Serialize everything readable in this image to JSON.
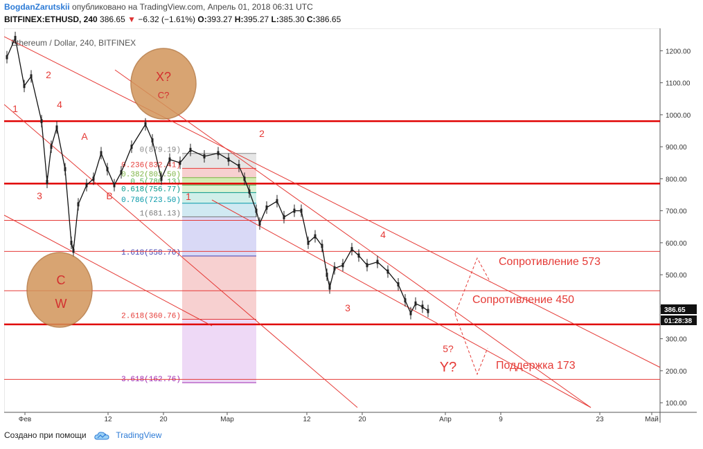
{
  "header": {
    "author": "BogdanZarutskii",
    "published_text": "опубликовано на TradingView.com, Апрель 01, 2018 06:31 UTC",
    "symbol": "BITFINEX:ETHUSD, 240",
    "last": "386.65",
    "change": "−6.32 (−1.61%)",
    "o_label": "O:",
    "o": "393.27",
    "h_label": "H:",
    "h": "395.27",
    "l_label": "L:",
    "l": "385.30",
    "c_label": "C:",
    "c": "386.65"
  },
  "footer": {
    "made_with": "Создано при помощи",
    "brand": "TradingView"
  },
  "chart_data": {
    "type": "line",
    "subtype": "candlestick",
    "title": "Ethereum / Dollar, 240, BITFINEX",
    "xlabel": "",
    "ylabel": "",
    "ylim": [
      70,
      1270
    ],
    "x_ticks": [
      "Фев",
      "12",
      "20",
      "Мар",
      "12",
      "20",
      "Апр",
      "9",
      "23",
      "Май"
    ],
    "y_ticks": [
      "1200.00",
      "1100.00",
      "1000.00",
      "900.00",
      "800.00",
      "700.00",
      "600.00",
      "500.00",
      "400.00",
      "300.00",
      "200.00",
      "100.00"
    ],
    "price_path": [
      {
        "x": 0.0,
        "y": 1180
      },
      {
        "x": 1.2,
        "y": 1240
      },
      {
        "x": 2.5,
        "y": 1090
      },
      {
        "x": 3.5,
        "y": 1120
      },
      {
        "x": 5.0,
        "y": 980
      },
      {
        "x": 5.8,
        "y": 790
      },
      {
        "x": 6.4,
        "y": 900
      },
      {
        "x": 7.2,
        "y": 960
      },
      {
        "x": 8.4,
        "y": 830
      },
      {
        "x": 9.3,
        "y": 600
      },
      {
        "x": 9.6,
        "y": 575
      },
      {
        "x": 10.3,
        "y": 720
      },
      {
        "x": 11.5,
        "y": 780
      },
      {
        "x": 12.5,
        "y": 800
      },
      {
        "x": 13.6,
        "y": 880
      },
      {
        "x": 14.5,
        "y": 830
      },
      {
        "x": 15.5,
        "y": 780
      },
      {
        "x": 16.5,
        "y": 820
      },
      {
        "x": 18.0,
        "y": 900
      },
      {
        "x": 20.0,
        "y": 970
      },
      {
        "x": 21.0,
        "y": 920
      },
      {
        "x": 22.3,
        "y": 800
      },
      {
        "x": 23.5,
        "y": 860
      },
      {
        "x": 25.0,
        "y": 850
      },
      {
        "x": 26.5,
        "y": 890
      },
      {
        "x": 28.5,
        "y": 870
      },
      {
        "x": 30.5,
        "y": 880
      },
      {
        "x": 32.0,
        "y": 860
      },
      {
        "x": 33.5,
        "y": 840
      },
      {
        "x": 34.3,
        "y": 800
      },
      {
        "x": 35.0,
        "y": 760
      },
      {
        "x": 36.0,
        "y": 700
      },
      {
        "x": 36.5,
        "y": 660
      },
      {
        "x": 37.5,
        "y": 710
      },
      {
        "x": 39.0,
        "y": 730
      },
      {
        "x": 40.0,
        "y": 680
      },
      {
        "x": 41.5,
        "y": 700
      },
      {
        "x": 42.5,
        "y": 700
      },
      {
        "x": 43.5,
        "y": 600
      },
      {
        "x": 44.5,
        "y": 620
      },
      {
        "x": 45.5,
        "y": 590
      },
      {
        "x": 46.2,
        "y": 500
      },
      {
        "x": 46.6,
        "y": 460
      },
      {
        "x": 47.3,
        "y": 520
      },
      {
        "x": 48.5,
        "y": 530
      },
      {
        "x": 49.8,
        "y": 580
      },
      {
        "x": 50.8,
        "y": 560
      },
      {
        "x": 52.0,
        "y": 530
      },
      {
        "x": 53.5,
        "y": 540
      },
      {
        "x": 55.0,
        "y": 510
      },
      {
        "x": 56.5,
        "y": 470
      },
      {
        "x": 57.5,
        "y": 420
      },
      {
        "x": 58.3,
        "y": 380
      },
      {
        "x": 59.0,
        "y": 410
      },
      {
        "x": 60.0,
        "y": 400
      },
      {
        "x": 60.8,
        "y": 386.65
      }
    ],
    "horizontal_levels": [
      {
        "price": 980,
        "color": "#e00000",
        "thick": true
      },
      {
        "price": 785,
        "color": "#e00000",
        "thick": true
      },
      {
        "price": 670,
        "color": "#e53935",
        "thick": false
      },
      {
        "price": 573,
        "color": "#e53935",
        "thick": false
      },
      {
        "price": 450,
        "color": "#e53935",
        "thick": false
      },
      {
        "price": 345,
        "color": "#e00000",
        "thick": true
      },
      {
        "price": 173,
        "color": "#e53935",
        "thick": false
      }
    ],
    "fib_levels": [
      {
        "label": "0(879.19)",
        "color": "#888888"
      },
      {
        "label": "0.236(832.41)",
        "color": "#e53935"
      },
      {
        "label": "0.382(803.50)",
        "color": "#7cb342"
      },
      {
        "label": "0.5(780.13)",
        "color": "#4caf50"
      },
      {
        "label": "0.618(756.77)",
        "color": "#009688"
      },
      {
        "label": "0.786(723.50)",
        "color": "#0097a7"
      },
      {
        "label": "1(681.13)",
        "color": "#777777"
      },
      {
        "label": "1.618(558.76)",
        "color": "#3f3fb0"
      },
      {
        "label": "2.618(360.76)",
        "color": "#e53935"
      },
      {
        "label": "3.618(162.76)",
        "color": "#9c27b0"
      }
    ],
    "fib_zones": [
      {
        "from": 0,
        "to": 1,
        "color": "#e0e0e0"
      },
      {
        "from": 1,
        "to": 2,
        "color": "#f5c4c4"
      },
      {
        "from": 2,
        "to": 3,
        "color": "#c8e6a0"
      },
      {
        "from": 3,
        "to": 4,
        "color": "#d4efc8"
      },
      {
        "from": 4,
        "to": 5,
        "color": "#c4ebe3"
      },
      {
        "from": 5,
        "to": 6,
        "color": "#c4e4ef"
      },
      {
        "from": 6,
        "to": 7,
        "color": "#d0d0f4"
      },
      {
        "from": 7,
        "to": 8,
        "color": "#f5c4c4"
      },
      {
        "from": 8,
        "to": 9,
        "color": "#ead0f4"
      }
    ],
    "annotations": {
      "wave_labels": [
        "2",
        "1",
        "4",
        "3",
        "A",
        "B",
        "1",
        "2",
        "4",
        "3",
        "5?"
      ],
      "big_label": "Y?",
      "circle1": [
        "X?",
        "C?"
      ],
      "circle2": [
        "C",
        "W"
      ],
      "resistance_573": "Сопротивление 573",
      "resistance_450": "Сопротивление 450",
      "support_173": "Поддержка 173"
    },
    "price_tag": "386.65",
    "timer_tag": "01:28:38",
    "colors": {
      "annotation": "#e53935",
      "level": "#e00000",
      "circle": "#d2955a",
      "candle": "#111111"
    }
  }
}
